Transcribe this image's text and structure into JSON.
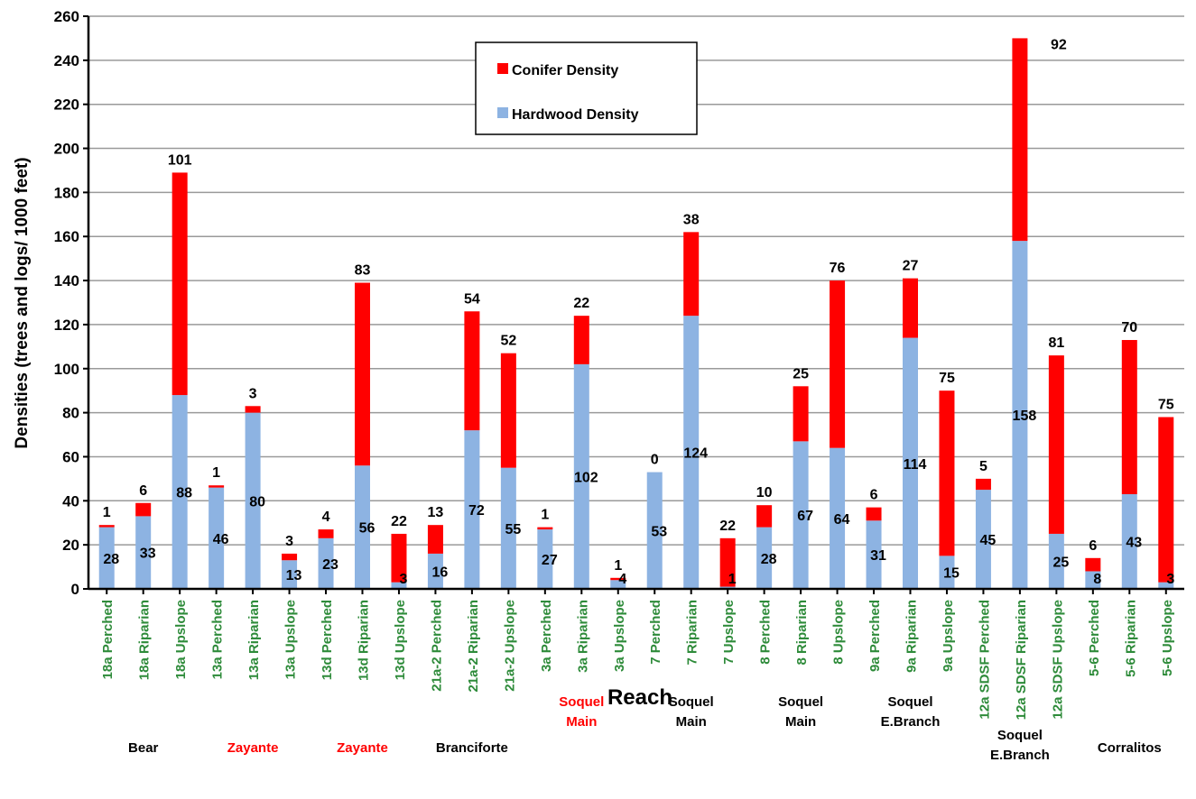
{
  "chart_data": {
    "type": "bar",
    "stacked": true,
    "title": "",
    "xlabel": "Reach",
    "ylabel": "Densities (trees and logs/ 1000 feet)",
    "ylim": [
      0,
      260
    ],
    "ytick_step": 20,
    "grid": true,
    "legend_position": "top-center",
    "categories": [
      "18a Perched",
      "18a Riparian",
      "18a Upslope",
      "13a Perched",
      "13a Riparian",
      "13a Upslope",
      "13d Perched",
      "13d Riparian",
      "13d Upslope",
      "21a-2 Perched",
      "21a-2 Riparian",
      "21a-2 Upslope",
      "3a Perched",
      "3a Riparian",
      "3a Upslope",
      "7 Perched",
      "7 Riparian",
      "7 Upslope",
      "8 Perched",
      "8 Riparian",
      "8 Upslope",
      "9a Perched",
      "9a Riparian",
      "9a Upslope",
      "12a SDSF Perched",
      "12a SDSF Riparian",
      "12a SDSF Upslope",
      "5-6 Perched",
      "5-6 Riparian",
      "5-6 Upslope"
    ],
    "series": [
      {
        "name": "Hardwood Density",
        "color": "#8db3e2",
        "values": [
          28,
          33,
          88,
          46,
          80,
          13,
          23,
          56,
          3,
          16,
          72,
          55,
          27,
          102,
          4,
          53,
          124,
          1,
          28,
          67,
          64,
          31,
          114,
          15,
          45,
          158,
          25,
          8,
          43,
          3
        ]
      },
      {
        "name": "Conifer Density",
        "color": "#ff0000",
        "values": [
          1,
          6,
          101,
          1,
          3,
          3,
          4,
          83,
          22,
          13,
          54,
          52,
          1,
          22,
          1,
          0,
          38,
          22,
          10,
          25,
          76,
          6,
          27,
          75,
          5,
          92,
          81,
          6,
          70,
          75
        ]
      }
    ],
    "groups": [
      {
        "label": "Bear",
        "color": "#000000",
        "start": 0,
        "end": 2,
        "row": 0
      },
      {
        "label": "Zayante",
        "color": "#ff0000",
        "start": 3,
        "end": 5,
        "row": 0
      },
      {
        "label": "Zayante",
        "color": "#ff0000",
        "start": 6,
        "end": 8,
        "row": 0
      },
      {
        "label": "Branciforte",
        "color": "#000000",
        "start": 9,
        "end": 11,
        "row": 0
      },
      {
        "label": "Soquel\nMain",
        "color": "#ff0000",
        "start": 12,
        "end": 14,
        "row": 0
      },
      {
        "label": "Soquel\nMain",
        "color": "#000000",
        "start": 15,
        "end": 17,
        "row": 0
      },
      {
        "label": "Soquel\nMain",
        "color": "#000000",
        "start": 18,
        "end": 20,
        "row": 0
      },
      {
        "label": "Soquel\nE.Branch",
        "color": "#000000",
        "start": 21,
        "end": 23,
        "row": 0
      },
      {
        "label": "Soquel\nE.Branch",
        "color": "#000000",
        "start": 24,
        "end": 26,
        "row": 1
      },
      {
        "label": "Corralitos",
        "color": "#000000",
        "start": 27,
        "end": 29,
        "row": 0
      }
    ]
  }
}
